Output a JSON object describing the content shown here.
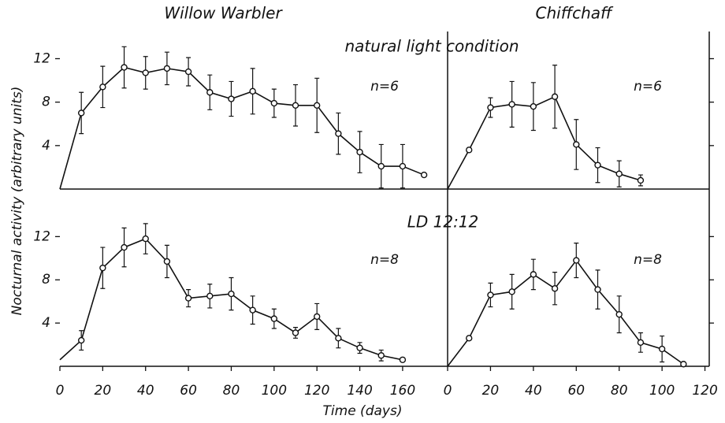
{
  "column_titles": [
    "Willow Warbler",
    "Chiffchaff"
  ],
  "row_titles": [
    "natural light condition",
    "LD 12:12"
  ],
  "ylabel": "Nocturnal activity (arbitrary units)",
  "xlabel": "Time (days)",
  "chart_data": [
    {
      "type": "line",
      "annotation": "n=6",
      "color": "#111",
      "x": [
        0,
        10,
        20,
        30,
        40,
        50,
        60,
        70,
        80,
        90,
        100,
        110,
        120,
        130,
        140,
        150,
        160,
        170
      ],
      "values": [
        0,
        7.0,
        9.4,
        11.2,
        10.7,
        11.1,
        10.8,
        8.9,
        8.3,
        9.0,
        7.9,
        7.7,
        7.7,
        5.1,
        3.4,
        2.1,
        2.1,
        1.3
      ],
      "errors": [
        null,
        1.9,
        1.9,
        1.9,
        1.5,
        1.5,
        1.3,
        1.6,
        1.6,
        2.1,
        1.3,
        1.9,
        2.5,
        1.9,
        1.9,
        2.0,
        2.0,
        null
      ],
      "xlim": [
        0,
        181
      ],
      "ylim": [
        0,
        14.5
      ],
      "yticks": [
        4,
        8,
        12
      ]
    },
    {
      "type": "line",
      "annotation": "n=6",
      "color": "#111",
      "x": [
        0,
        10,
        20,
        30,
        40,
        50,
        60,
        70,
        80,
        90
      ],
      "values": [
        0,
        3.6,
        7.5,
        7.8,
        7.6,
        8.5,
        4.1,
        2.2,
        1.4,
        0.8
      ],
      "errors": [
        null,
        null,
        0.9,
        2.1,
        2.2,
        2.9,
        2.3,
        1.6,
        1.2,
        0.5
      ],
      "xlim": [
        0,
        122
      ],
      "ylim": [
        0,
        14.5
      ],
      "yticks": [
        4,
        8,
        12
      ]
    },
    {
      "type": "line",
      "annotation": "n=8",
      "color": "#111",
      "x": [
        0,
        10,
        20,
        30,
        40,
        50,
        60,
        70,
        80,
        90,
        100,
        110,
        120,
        130,
        140,
        150,
        160
      ],
      "values": [
        0.6,
        2.4,
        9.1,
        11.0,
        11.8,
        9.7,
        6.3,
        6.5,
        6.7,
        5.2,
        4.4,
        3.1,
        4.6,
        2.6,
        1.7,
        1.0,
        0.6
      ],
      "errors": [
        null,
        0.9,
        1.9,
        1.8,
        1.4,
        1.5,
        0.8,
        1.1,
        1.5,
        1.3,
        0.9,
        0.5,
        1.2,
        0.9,
        0.5,
        0.5,
        null
      ],
      "xlim": [
        0,
        181
      ],
      "ylim": [
        0,
        16.4
      ],
      "yticks": [
        4,
        8,
        12
      ],
      "xticks": [
        0,
        20,
        40,
        60,
        80,
        100,
        120,
        140,
        160
      ]
    },
    {
      "type": "line",
      "annotation": "n=8",
      "color": "#111",
      "x": [
        0,
        10,
        20,
        30,
        40,
        50,
        60,
        70,
        80,
        90,
        100,
        110
      ],
      "values": [
        0,
        2.6,
        6.6,
        6.9,
        8.5,
        7.2,
        9.8,
        7.1,
        4.8,
        2.2,
        1.6,
        0.2
      ],
      "errors": [
        null,
        null,
        1.1,
        1.6,
        1.4,
        1.5,
        1.6,
        1.8,
        1.7,
        0.9,
        1.2,
        null
      ],
      "xlim": [
        0,
        122
      ],
      "ylim": [
        0,
        16.4
      ],
      "yticks": [
        4,
        8,
        12
      ],
      "xticks": [
        0,
        20,
        40,
        60,
        80,
        100,
        120
      ]
    }
  ]
}
